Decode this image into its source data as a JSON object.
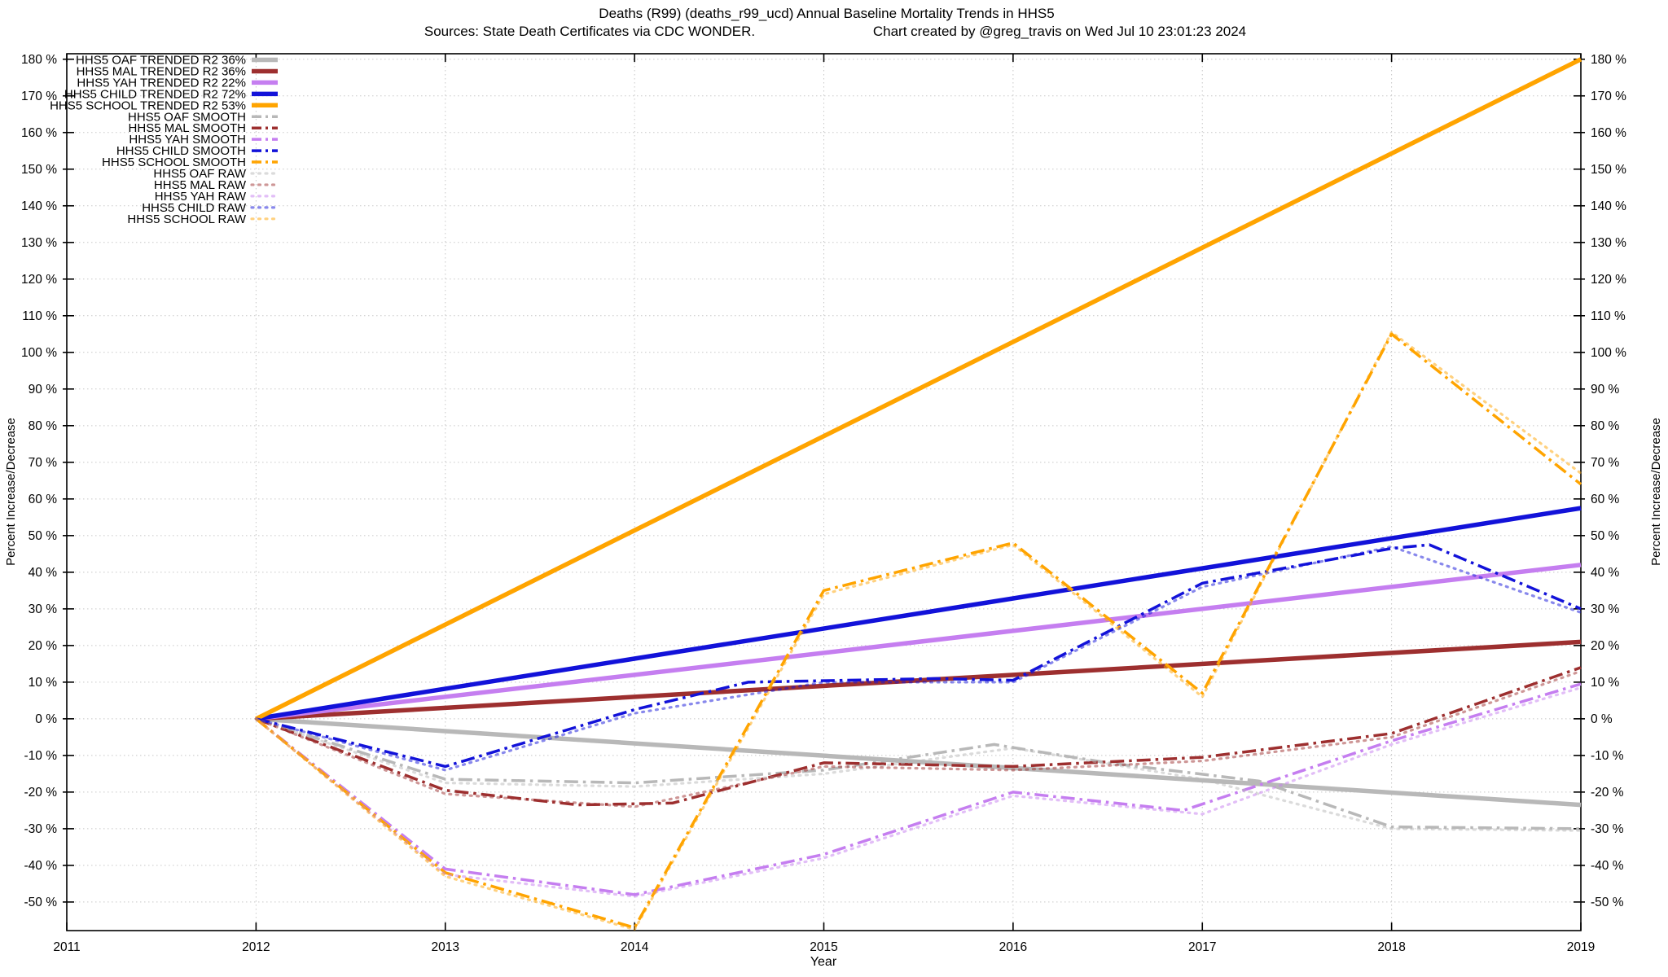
{
  "chart_data": {
    "type": "line",
    "title": "Deaths (R99) (deaths_r99_ucd)  Annual Baseline Mortality Trends in HHS5",
    "subtitle_left": "Sources: State Death Certificates via CDC WONDER.",
    "subtitle_right": "Chart created by @greg_travis on Wed Jul 10 23:01:23 2024",
    "xlabel": "Year",
    "ylabel_left": "Percent Increase/Decrease",
    "ylabel_right": "Percent Increase/Decrease",
    "xlim": [
      2011,
      2019
    ],
    "ylim": [
      -57.8,
      181.5
    ],
    "x_ticks": [
      2011,
      2012,
      2013,
      2014,
      2015,
      2016,
      2017,
      2018,
      2019
    ],
    "y_ticks": [
      -50,
      -40,
      -30,
      -20,
      -10,
      0,
      10,
      20,
      30,
      40,
      50,
      60,
      70,
      80,
      90,
      100,
      110,
      120,
      130,
      140,
      150,
      160,
      170,
      180
    ],
    "y_tick_suffix": " %",
    "grid": true,
    "legend_position": "top-left-inside",
    "colors": {
      "OAF": "#b8b8b8",
      "MAL": "#9d2f2f",
      "YAH": "#c57ef0",
      "CHILD": "#1212d9",
      "SCHOOL": "#ffa400",
      "axis": "#000000",
      "grid": "#c8c8c8"
    },
    "styles": {
      "trended": {
        "dash": "",
        "width": 5.5,
        "opacity": 1
      },
      "smooth": {
        "dash": "17 6 3.5 6",
        "width": 3.5,
        "opacity": 1
      },
      "raw": {
        "dash": "2 6.5",
        "width": 3.2,
        "opacity": 0.5
      }
    },
    "series": [
      {
        "name": "HHS5 OAF TRENDED R2  36%",
        "group": "OAF",
        "style": "trended",
        "r2": "36%",
        "points": [
          [
            2012,
            0
          ],
          [
            2019,
            -23.5
          ]
        ]
      },
      {
        "name": "HHS5 MAL TRENDED R2  36%",
        "group": "MAL",
        "style": "trended",
        "r2": "36%",
        "points": [
          [
            2012,
            0
          ],
          [
            2019,
            21
          ]
        ]
      },
      {
        "name": "HHS5 YAH TRENDED R2  22%",
        "group": "YAH",
        "style": "trended",
        "r2": "22%",
        "points": [
          [
            2012,
            0
          ],
          [
            2019,
            42
          ]
        ]
      },
      {
        "name": "HHS5 CHILD TRENDED R2  72%",
        "group": "CHILD",
        "style": "trended",
        "r2": "72%",
        "points": [
          [
            2012,
            0
          ],
          [
            2019,
            57.5
          ]
        ]
      },
      {
        "name": "HHS5 SCHOOL TRENDED R2  53%",
        "group": "SCHOOL",
        "style": "trended",
        "r2": "53%",
        "points": [
          [
            2012,
            0
          ],
          [
            2019,
            180
          ]
        ]
      },
      {
        "name": "HHS5 OAF SMOOTH",
        "group": "OAF",
        "style": "smooth",
        "points": [
          [
            2012,
            0
          ],
          [
            2013,
            -16.5
          ],
          [
            2014,
            -17.5
          ],
          [
            2015,
            -14
          ],
          [
            2015.9,
            -7
          ],
          [
            2016.5,
            -12
          ],
          [
            2017.3,
            -17
          ],
          [
            2018,
            -29.5
          ],
          [
            2019,
            -30
          ]
        ]
      },
      {
        "name": "HHS5 MAL SMOOTH",
        "group": "MAL",
        "style": "smooth",
        "points": [
          [
            2012,
            0
          ],
          [
            2013,
            -19.5
          ],
          [
            2013.7,
            -23.5
          ],
          [
            2014.2,
            -23
          ],
          [
            2015,
            -12
          ],
          [
            2016,
            -13
          ],
          [
            2017,
            -10.5
          ],
          [
            2018,
            -4
          ],
          [
            2019,
            14
          ]
        ]
      },
      {
        "name": "HHS5 YAH SMOOTH",
        "group": "YAH",
        "style": "smooth",
        "points": [
          [
            2012,
            0
          ],
          [
            2013,
            -41
          ],
          [
            2014,
            -48
          ],
          [
            2015,
            -37
          ],
          [
            2016,
            -20
          ],
          [
            2016.9,
            -25
          ],
          [
            2018,
            -6
          ],
          [
            2019,
            9.5
          ]
        ]
      },
      {
        "name": "HHS5 CHILD SMOOTH",
        "group": "CHILD",
        "style": "smooth",
        "points": [
          [
            2012,
            0
          ],
          [
            2013,
            -13
          ],
          [
            2014,
            2.5
          ],
          [
            2014.6,
            10
          ],
          [
            2015.6,
            11
          ],
          [
            2016,
            10.5
          ],
          [
            2017,
            37
          ],
          [
            2018,
            46.5
          ],
          [
            2018.2,
            47.5
          ],
          [
            2019,
            30
          ]
        ]
      },
      {
        "name": "HHS5 SCHOOL SMOOTH",
        "group": "SCHOOL",
        "style": "smooth",
        "points": [
          [
            2012,
            0
          ],
          [
            2013,
            -42
          ],
          [
            2014,
            -57
          ],
          [
            2015,
            35
          ],
          [
            2016,
            48
          ],
          [
            2017,
            7
          ],
          [
            2018,
            105
          ],
          [
            2019,
            64
          ]
        ]
      },
      {
        "name": "HHS5 OAF RAW",
        "group": "OAF",
        "style": "raw",
        "points": [
          [
            2012,
            0
          ],
          [
            2013,
            -17.5
          ],
          [
            2014,
            -18.5
          ],
          [
            2015,
            -15
          ],
          [
            2016,
            -8
          ],
          [
            2017,
            -16.5
          ],
          [
            2018,
            -30
          ],
          [
            2019,
            -30.5
          ]
        ]
      },
      {
        "name": "HHS5 MAL RAW",
        "group": "MAL",
        "style": "raw",
        "points": [
          [
            2012,
            0
          ],
          [
            2013,
            -20.5
          ],
          [
            2014,
            -24
          ],
          [
            2015,
            -13
          ],
          [
            2016,
            -14
          ],
          [
            2017,
            -11.5
          ],
          [
            2018,
            -5
          ],
          [
            2019,
            13
          ]
        ]
      },
      {
        "name": "HHS5 YAH RAW",
        "group": "YAH",
        "style": "raw",
        "points": [
          [
            2012,
            0
          ],
          [
            2013,
            -42.5
          ],
          [
            2014,
            -48.5
          ],
          [
            2015,
            -38
          ],
          [
            2016,
            -21
          ],
          [
            2017,
            -26
          ],
          [
            2018,
            -7
          ],
          [
            2019,
            8.5
          ]
        ]
      },
      {
        "name": "HHS5 CHILD RAW",
        "group": "CHILD",
        "style": "raw",
        "points": [
          [
            2012,
            0
          ],
          [
            2013,
            -14
          ],
          [
            2014,
            1.5
          ],
          [
            2015,
            10
          ],
          [
            2016,
            10
          ],
          [
            2017,
            36
          ],
          [
            2018,
            47
          ],
          [
            2019,
            29
          ]
        ]
      },
      {
        "name": "HHS5 SCHOOL RAW",
        "group": "SCHOOL",
        "style": "raw",
        "points": [
          [
            2012,
            0
          ],
          [
            2013,
            -43
          ],
          [
            2014,
            -57.5
          ],
          [
            2015,
            34
          ],
          [
            2016,
            47.5
          ],
          [
            2017,
            6
          ],
          [
            2018,
            105.5
          ],
          [
            2019,
            67
          ]
        ]
      }
    ]
  }
}
